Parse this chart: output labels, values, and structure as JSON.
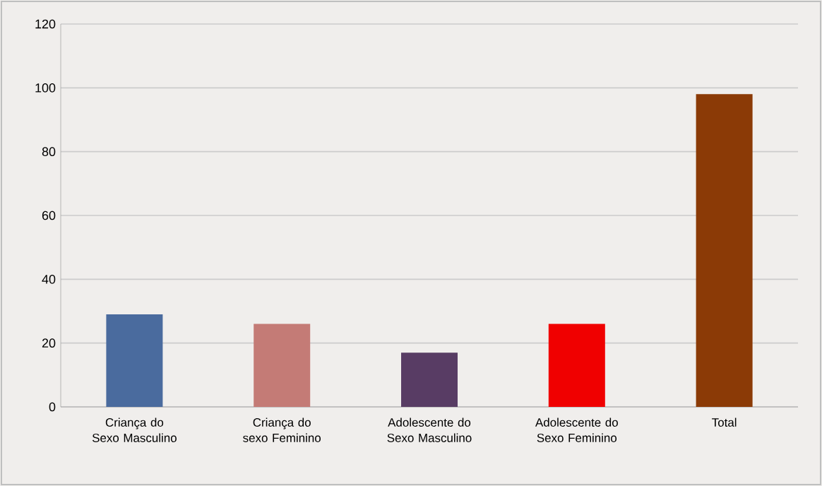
{
  "chart_data": {
    "type": "bar",
    "categories": [
      "Criança do Sexo Masculino",
      "Criança do sexo Feminino",
      "Adolescente do Sexo Masculino",
      "Adolescente do Sexo Feminino",
      "Total"
    ],
    "values": [
      29,
      26,
      17,
      26,
      98
    ],
    "colors": [
      "#4a6b9e",
      "#c47b76",
      "#583c64",
      "#f00000",
      "#8b3a06"
    ],
    "ylim": [
      0,
      120
    ],
    "yticks": [
      0,
      20,
      40,
      60,
      80,
      100,
      120
    ],
    "grid": "y"
  }
}
